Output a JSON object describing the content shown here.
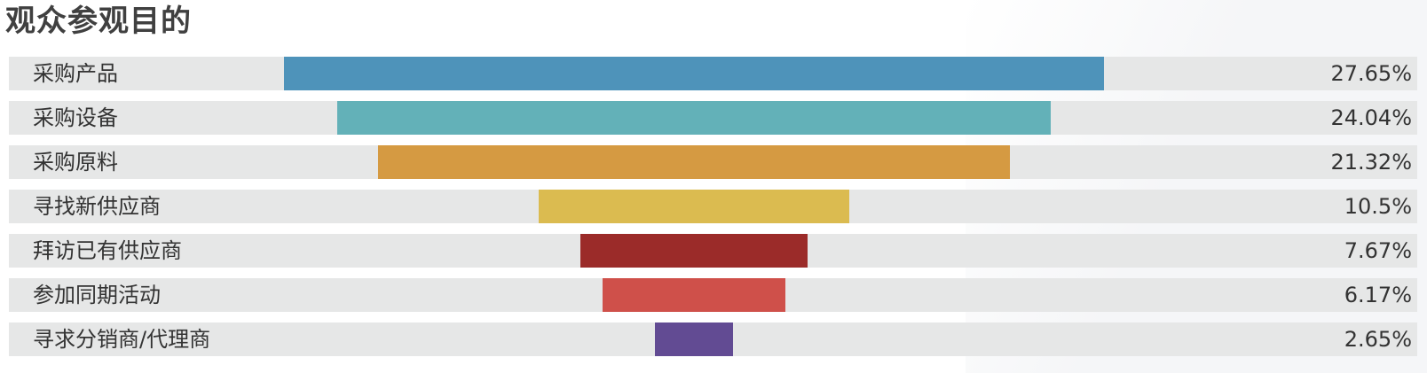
{
  "title": "观众参观目的",
  "chart_data": {
    "type": "bar",
    "orientation": "horizontal-funnel",
    "title": "观众参观目的",
    "categories": [
      "采购产品",
      "采购设备",
      "采购原料",
      "寻找新供应商",
      "拜访已有供应商",
      "参加同期活动",
      "寻求分销商/代理商"
    ],
    "values": [
      27.65,
      24.04,
      21.32,
      10.5,
      7.67,
      6.17,
      2.65
    ],
    "value_labels": [
      "27.65%",
      "24.04%",
      "21.32%",
      "10.5%",
      "7.67%",
      "6.17%",
      "2.65%"
    ],
    "colors": [
      "#4e93ba",
      "#63b1b8",
      "#d59a42",
      "#dbbb50",
      "#9b2b29",
      "#cf504a",
      "#624b93"
    ],
    "unit": "%",
    "grid": false,
    "legend": "none"
  }
}
